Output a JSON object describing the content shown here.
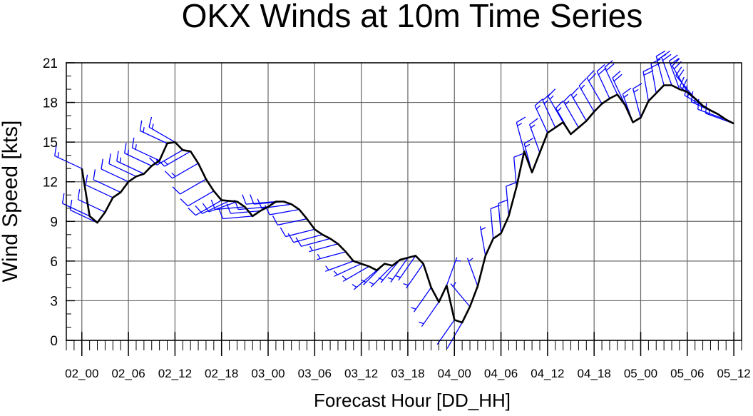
{
  "chart_data": {
    "type": "line",
    "title": "OKX Winds at 10m Time Series",
    "xlabel": "Forecast Hour [DD_HH]",
    "ylabel": "Wind Speed [kts]",
    "xlim": [
      -2,
      85
    ],
    "ylim": [
      0,
      21
    ],
    "yticks": [
      0,
      3,
      6,
      9,
      12,
      15,
      18,
      21
    ],
    "xticks": [
      0,
      6,
      12,
      18,
      24,
      30,
      36,
      42,
      48,
      54,
      60,
      66,
      72,
      78,
      84
    ],
    "xtick_labels": [
      "02_00",
      "02_06",
      "02_12",
      "02_18",
      "03_00",
      "03_06",
      "03_12",
      "03_18",
      "04_00",
      "04_06",
      "04_12",
      "04_18",
      "05_00",
      "05_06",
      "05_12"
    ],
    "grid": true,
    "colors": {
      "line": "#000000",
      "barbs": "#0000ff",
      "grid": "#555555"
    },
    "series": [
      {
        "name": "Wind Speed",
        "x": [
          0,
          1,
          2,
          3,
          4,
          5,
          6,
          7,
          8,
          9,
          10,
          11,
          12,
          13,
          14,
          15,
          16,
          17,
          18,
          19,
          20,
          21,
          22,
          23,
          24,
          25,
          26,
          27,
          28,
          29,
          30,
          31,
          32,
          33,
          34,
          35,
          36,
          37,
          38,
          39,
          40,
          41,
          42,
          43,
          44,
          45,
          46,
          47,
          48,
          49,
          50,
          51,
          52,
          53,
          54,
          55,
          56,
          57,
          58,
          59,
          60,
          61,
          62,
          63,
          64,
          65,
          66,
          67,
          68,
          69,
          70,
          71,
          72,
          73,
          74,
          75,
          76,
          77,
          78,
          79,
          80,
          81,
          82,
          83,
          84
        ],
        "values": [
          13.0,
          9.4,
          8.9,
          9.7,
          10.8,
          11.2,
          12.0,
          12.4,
          12.6,
          13.2,
          13.6,
          14.9,
          15.0,
          14.4,
          14.3,
          13.4,
          12.2,
          11.3,
          10.6,
          10.55,
          10.5,
          10.1,
          9.4,
          9.8,
          10.1,
          10.5,
          10.5,
          10.3,
          9.9,
          9.2,
          8.4,
          8.0,
          7.7,
          7.3,
          6.7,
          6.0,
          5.8,
          5.6,
          5.3,
          5.8,
          5.65,
          6.1,
          6.25,
          6.4,
          5.8,
          4.0,
          2.9,
          4.15,
          1.55,
          1.35,
          2.55,
          4.1,
          6.4,
          7.7,
          8.1,
          9.4,
          11.6,
          14.3,
          12.7,
          14.2,
          15.7,
          16.1,
          16.5,
          15.6,
          16.1,
          16.6,
          17.3,
          17.9,
          18.3,
          18.6,
          17.8,
          16.5,
          16.85,
          18.1,
          18.7,
          19.3,
          19.3,
          19.0,
          18.8,
          18.3,
          17.75,
          17.4,
          17.1,
          16.7,
          16.4
        ],
        "wind_from_deg": [
          295,
          295,
          295,
          295,
          295,
          295,
          295,
          295,
          295,
          295,
          295,
          295,
          300,
          240,
          240,
          240,
          240,
          240,
          240,
          245,
          250,
          265,
          265,
          265,
          265,
          265,
          265,
          262,
          260,
          258,
          256,
          255,
          255,
          255,
          255,
          250,
          245,
          240,
          230,
          225,
          225,
          220,
          215,
          215,
          215,
          215,
          215,
          20,
          215,
          210,
          320,
          340,
          350,
          355,
          355,
          355,
          355,
          345,
          345,
          340,
          335,
          335,
          330,
          330,
          330,
          330,
          330,
          330,
          335,
          335,
          335,
          340,
          345,
          350,
          350,
          345,
          340,
          340,
          330,
          320,
          310,
          300,
          295,
          290,
          290
        ]
      }
    ]
  }
}
